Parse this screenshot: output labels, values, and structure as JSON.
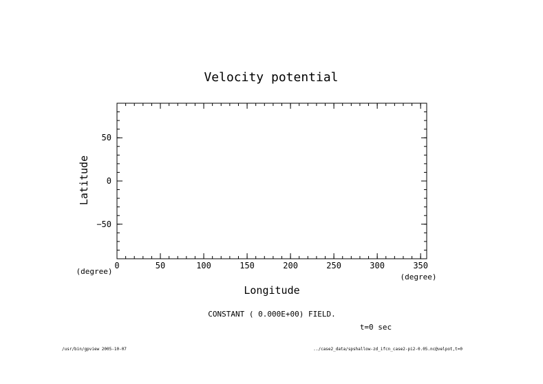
{
  "chart_data": {
    "type": "line",
    "title": "Velocity potential",
    "xlabel": "Longitude",
    "ylabel": "Latitude",
    "xunit": "(degree)",
    "yunit": "(degree)",
    "xlim": [
      0,
      357
    ],
    "ylim": [
      -90,
      90
    ],
    "xticks": [
      0,
      50,
      100,
      150,
      200,
      250,
      300,
      350
    ],
    "yticks": [
      -50,
      0,
      50
    ],
    "xminor_step": 10,
    "yminor_step": 10,
    "series": [],
    "grid": false,
    "message": "CONSTANT ( 0.000E+00) FIELD.",
    "time_label": "t=0 sec"
  },
  "footer": {
    "left": "/usr/bin/gpview  2005-10-07",
    "right": "../case2_data/spshallow-zd_ifcn_case2-pi2-0.05.nc@velpot,t=0"
  }
}
